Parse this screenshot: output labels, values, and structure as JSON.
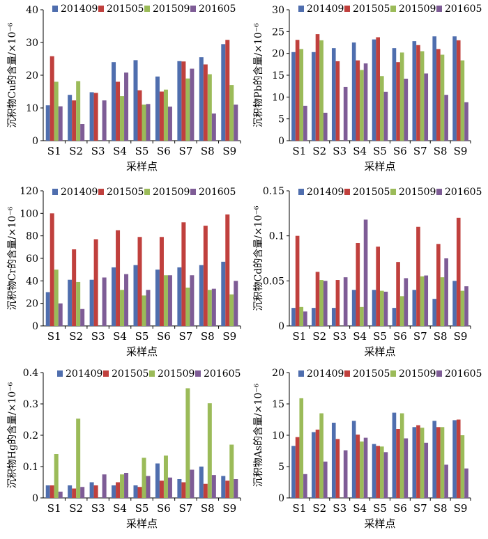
{
  "colors": {
    "201409": "#4F6EAE",
    "201505": "#C0403D",
    "201509": "#9BBB59",
    "201605": "#7E5C96"
  },
  "chart_data": [
    {
      "type": "bar",
      "categories": [
        "S1",
        "S2",
        "S3",
        "S4",
        "S5",
        "S6",
        "S7",
        "S8",
        "S9"
      ],
      "xlabel": "采样点",
      "ylabel": "沉积物Cu的含量/×10⁻⁶",
      "ylim": [
        0,
        40
      ],
      "yticks": [
        "0",
        "10",
        "20",
        "30",
        "40"
      ],
      "legend": "top",
      "series": [
        {
          "name": "201409",
          "values": [
            10.8,
            14.0,
            14.8,
            24.0,
            24.6,
            19.6,
            24.3,
            25.5,
            29.5
          ]
        },
        {
          "name": "201505",
          "values": [
            25.8,
            12.3,
            14.6,
            18.0,
            15.4,
            15.0,
            24.2,
            23.3,
            30.8
          ]
        },
        {
          "name": "201509",
          "values": [
            18.0,
            18.2,
            0,
            13.6,
            11.0,
            15.6,
            19.0,
            20.3,
            17.0
          ]
        },
        {
          "name": "201605",
          "values": [
            10.5,
            5.1,
            12.3,
            20.8,
            11.2,
            10.4,
            22.0,
            8.3,
            11.0
          ]
        }
      ]
    },
    {
      "type": "bar",
      "categories": [
        "S1",
        "S2",
        "S3",
        "S4",
        "S5",
        "S6",
        "S7",
        "S8",
        "S9"
      ],
      "xlabel": "采样点",
      "ylabel": "沉积物Pb的含量/×10⁻⁶",
      "ylim": [
        0,
        30
      ],
      "yticks": [
        "0",
        "5",
        "10",
        "15",
        "20",
        "25",
        "30"
      ],
      "legend": "top",
      "series": [
        {
          "name": "201409",
          "values": [
            20.3,
            20.3,
            21.2,
            22.5,
            23.2,
            21.2,
            22.8,
            23.9,
            23.9
          ]
        },
        {
          "name": "201505",
          "values": [
            23.1,
            24.4,
            18.2,
            18.4,
            23.7,
            18.0,
            21.9,
            21.0,
            23.0
          ]
        },
        {
          "name": "201509",
          "values": [
            21.0,
            23.0,
            0,
            16.2,
            14.8,
            20.2,
            20.5,
            19.7,
            18.4
          ]
        },
        {
          "name": "201605",
          "values": [
            8.0,
            6.4,
            12.3,
            17.7,
            11.2,
            14.2,
            15.4,
            10.5,
            8.8
          ]
        }
      ]
    },
    {
      "type": "bar",
      "categories": [
        "S1",
        "S2",
        "S3",
        "S4",
        "S5",
        "S6",
        "S7",
        "S8",
        "S9"
      ],
      "xlabel": "采样点",
      "ylabel": "沉积物Cr的含量/×10⁻⁶",
      "ylim": [
        0,
        120
      ],
      "yticks": [
        "0",
        "20",
        "40",
        "60",
        "80",
        "100",
        "120"
      ],
      "legend": "top",
      "series": [
        {
          "name": "201409",
          "values": [
            30,
            41,
            41,
            52,
            54,
            50,
            52,
            54,
            57
          ]
        },
        {
          "name": "201505",
          "values": [
            100,
            68,
            77,
            85,
            79,
            79,
            92,
            89,
            99
          ]
        },
        {
          "name": "201509",
          "values": [
            50,
            39,
            0,
            32,
            27,
            45,
            34,
            32,
            28
          ]
        },
        {
          "name": "201605",
          "values": [
            20,
            15,
            43,
            46,
            32,
            45,
            45,
            33,
            40
          ]
        }
      ]
    },
    {
      "type": "bar",
      "categories": [
        "S1",
        "S2",
        "S3",
        "S4",
        "S5",
        "S6",
        "S7",
        "S8",
        "S9"
      ],
      "xlabel": "采样点",
      "ylabel": "沉积物Cd的含量/×10⁻⁶",
      "ylim": [
        0,
        0.15
      ],
      "yticks": [
        "0",
        "0.05",
        "0.1",
        "0.15"
      ],
      "legend": "top",
      "series": [
        {
          "name": "201409",
          "values": [
            0.02,
            0.02,
            0.02,
            0.04,
            0.04,
            0.02,
            0.04,
            0.03,
            0.05
          ]
        },
        {
          "name": "201505",
          "values": [
            0.1,
            0.06,
            0.051,
            0.092,
            0.088,
            0.071,
            0.11,
            0.091,
            0.12
          ]
        },
        {
          "name": "201509",
          "values": [
            0.021,
            0.051,
            0,
            0.021,
            0.039,
            0.033,
            0.055,
            0.054,
            0.039
          ]
        },
        {
          "name": "201605",
          "values": [
            0.016,
            0.05,
            0.054,
            0.118,
            0.038,
            0.053,
            0.056,
            0.075,
            0.044
          ]
        }
      ]
    },
    {
      "type": "bar",
      "categories": [
        "S1",
        "S2",
        "S3",
        "S4",
        "S5",
        "S6",
        "S7",
        "S8",
        "S9"
      ],
      "xlabel": "采样点",
      "ylabel": "沉积物Hg的含量/×10⁻⁶",
      "ylim": [
        0,
        0.4
      ],
      "yticks": [
        "0",
        "0.1",
        "0.2",
        "0.3",
        "0.4"
      ],
      "legend": "top",
      "series": [
        {
          "name": "201409",
          "values": [
            0.04,
            0.04,
            0.05,
            0.04,
            0.04,
            0.11,
            0.06,
            0.1,
            0.07
          ]
        },
        {
          "name": "201505",
          "values": [
            0.04,
            0.03,
            0.04,
            0.05,
            0.035,
            0.055,
            0.05,
            0.045,
            0.055
          ]
        },
        {
          "name": "201509",
          "values": [
            0.14,
            0.253,
            0,
            0.075,
            0.128,
            0.135,
            0.35,
            0.302,
            0.17
          ]
        },
        {
          "name": "201605",
          "values": [
            0.02,
            0.035,
            0.075,
            0.08,
            0.07,
            0.065,
            0.09,
            0.073,
            0.06
          ]
        }
      ]
    },
    {
      "type": "bar",
      "categories": [
        "S1",
        "S2",
        "S3",
        "S4",
        "S5",
        "S6",
        "S7",
        "S8",
        "S9"
      ],
      "xlabel": "采样点",
      "ylabel": "沉积物As的含量/×10⁻⁶",
      "ylim": [
        0,
        20
      ],
      "yticks": [
        "0",
        "5",
        "10",
        "15",
        "20"
      ],
      "legend": "top",
      "series": [
        {
          "name": "201409",
          "values": [
            8.3,
            10.5,
            12.0,
            12.3,
            8.6,
            13.6,
            11.3,
            12.3,
            12.4
          ]
        },
        {
          "name": "201505",
          "values": [
            9.7,
            10.9,
            9.4,
            10.1,
            8.3,
            11.0,
            11.6,
            11.3,
            12.5
          ]
        },
        {
          "name": "201509",
          "values": [
            15.9,
            13.5,
            0,
            9.0,
            8.2,
            13.5,
            11.2,
            11.3,
            10.0
          ]
        },
        {
          "name": "201605",
          "values": [
            3.8,
            5.8,
            7.6,
            9.6,
            7.3,
            9.5,
            8.8,
            5.3,
            4.7
          ]
        }
      ]
    }
  ]
}
